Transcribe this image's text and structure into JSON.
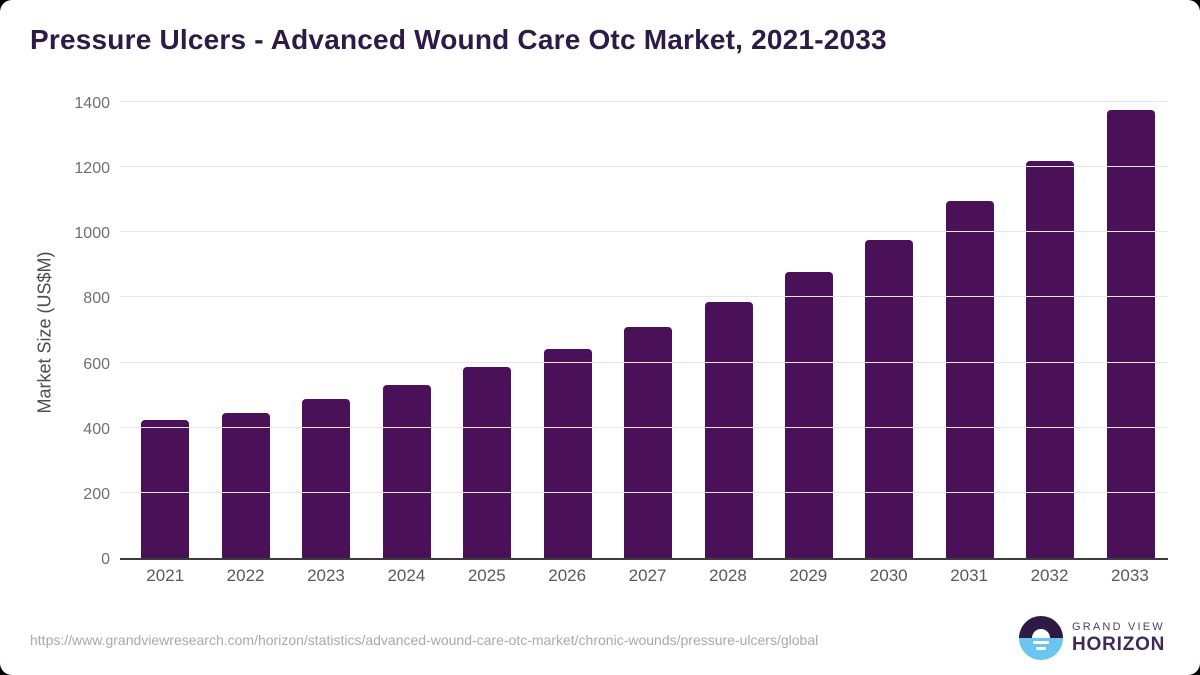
{
  "header": {
    "title": "Pressure Ulcers - Advanced Wound Care Otc Market, 2021-2033"
  },
  "chart_data": {
    "type": "bar",
    "title": "Pressure Ulcers - Advanced Wound Care Otc Market, 2021-2033",
    "categories": [
      "2021",
      "2022",
      "2023",
      "2024",
      "2025",
      "2026",
      "2027",
      "2028",
      "2029",
      "2030",
      "2031",
      "2032",
      "2033"
    ],
    "values": [
      425,
      446,
      489,
      532,
      585,
      643,
      708,
      785,
      877,
      975,
      1095,
      1220,
      1375
    ],
    "series_name": "Market Size",
    "xlabel": "",
    "ylabel": "Market Size (US$M)",
    "ylim": [
      0,
      1400
    ],
    "yticks": [
      0,
      200,
      400,
      600,
      800,
      1000,
      1200,
      1400
    ],
    "grid": "horizontal",
    "legend": "none",
    "bar_color": "#4A1159"
  },
  "footer": {
    "source_url": "https://www.grandviewresearch.com/horizon/statistics/advanced-wound-care-otc-market/chronic-wounds/pressure-ulcers/global",
    "logo": {
      "line1": "GRAND VIEW",
      "line2": "HORIZON",
      "icon": "horizon-sun-over-water-icon",
      "icon_top_color": "#2F1A45",
      "icon_bottom_color": "#6AC6EF"
    }
  },
  "colors": {
    "background": "#FFFFFF",
    "page_behind": "#000000",
    "title_text": "#2E1A47",
    "bar": "#4A1159",
    "gridline": "#E7E7E9",
    "axis_line": "#3C3C3C",
    "tick_text": "#6F7072",
    "x_tick_text": "#59595B",
    "source_text": "#A9A9AB"
  }
}
